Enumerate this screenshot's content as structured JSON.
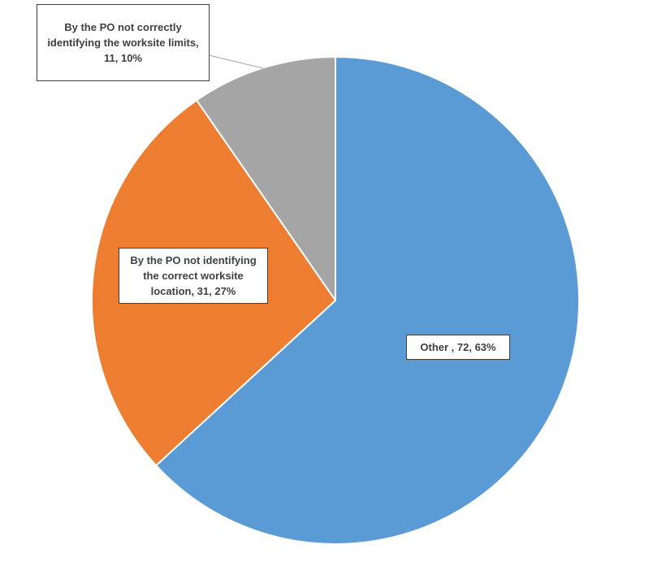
{
  "chart_data": {
    "type": "pie",
    "values": [
      72,
      31,
      11
    ],
    "value_labels": [
      "Other , 72, 63%",
      "By the PO not identifying the correct worksite location, 31, 27%",
      "By the PO not correctly identifying the worksite limits, 11, 10%"
    ],
    "colors": [
      "#5b9bd5",
      "#ed7d31",
      "#a5a5a5"
    ]
  }
}
